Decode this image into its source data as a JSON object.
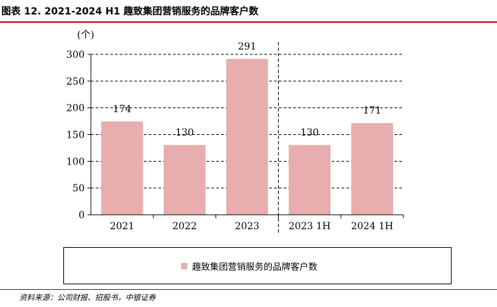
{
  "figure": {
    "title": "图表  12. 2021-2024 H1 趣致集团营销服务的品牌客户数",
    "source": "资料来源：公司财报、招股书，中银证券"
  },
  "colors": {
    "bar": "#e8aeae",
    "bar_stroke": "#d99a9a",
    "accent": "#b3001b"
  },
  "chart_data": {
    "type": "bar",
    "categories": [
      "2021",
      "2022",
      "2023",
      "2023 1H",
      "2024 1H"
    ],
    "series": [
      {
        "name": "趣致集团营销服务的品牌客户数",
        "values": [
          174,
          130,
          291,
          130,
          171
        ]
      }
    ],
    "unit_label": "(个)",
    "ylim": [
      0,
      300
    ],
    "yticks": [
      0,
      50,
      100,
      150,
      200,
      250,
      300
    ],
    "grid": "dashed horizontal",
    "legend": "bottom",
    "divider_after_category": "2023"
  }
}
